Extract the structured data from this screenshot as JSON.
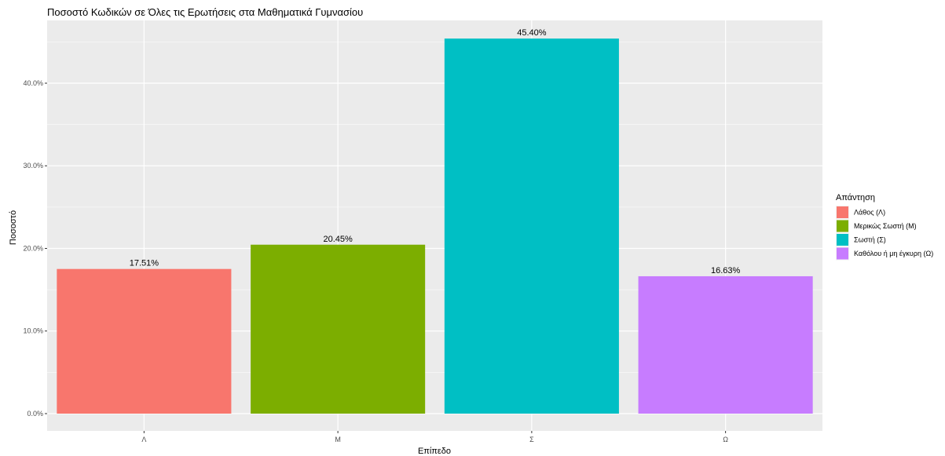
{
  "chart_data": {
    "type": "bar",
    "title": "Ποσοστό Κωδικών σε Όλες τις Ερωτήσεις στα Μαθηματικά Γυμνασίου",
    "xlabel": "Επίπεδο",
    "ylabel": "Ποσοστό",
    "categories": [
      "Λ",
      "Μ",
      "Σ",
      "Ω"
    ],
    "values": [
      17.51,
      20.45,
      45.4,
      16.63
    ],
    "value_labels": [
      "17.51%",
      "20.45%",
      "45.40%",
      "16.63%"
    ],
    "colors": [
      "#F8766D",
      "#7CAE00",
      "#00BFC4",
      "#C77CFF"
    ],
    "ylim": [
      0,
      47.6
    ],
    "yticks": [
      0,
      10,
      20,
      30,
      40
    ],
    "ytick_labels": [
      "0.0%",
      "10.0%",
      "20.0%",
      "30.0%",
      "40.0%"
    ],
    "grid": true,
    "legend": {
      "title": "Απάντηση",
      "position": "right",
      "entries": [
        "Λάθος (Λ)",
        "Μερικώς Σωστή (Μ)",
        "Σωστή (Σ)",
        "Καθόλου ή μη έγκυρη (Ω)"
      ]
    }
  }
}
